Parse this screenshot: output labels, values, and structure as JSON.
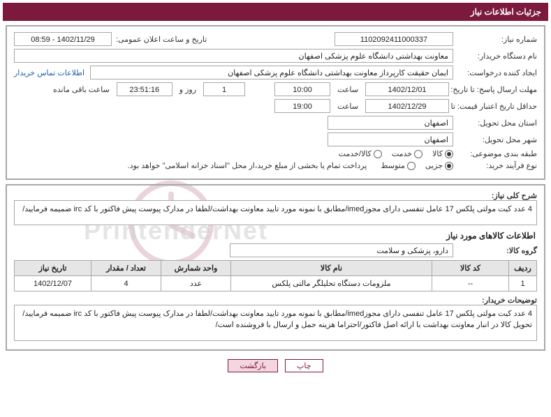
{
  "title": "جزئیات اطلاعات نیاز",
  "labels": {
    "need_no": "شماره نیاز:",
    "announce_dt": "تاریخ و ساعت اعلان عمومی:",
    "buyer_org": "نام دستگاه خریدار:",
    "requester": "ایجاد کننده درخواست:",
    "contact_link": "اطلاعات تماس خریدار",
    "reply_deadline": "مهلت ارسال پاسخ: تا تاریخ:",
    "hour": "ساعت",
    "day_and": "روز و",
    "remaining": "ساعت باقی مانده",
    "price_valid_min": "حداقل تاریخ اعتبار قیمت: تا تاریخ:",
    "delivery_province": "استان محل تحویل:",
    "delivery_city": "شهر محل تحویل:",
    "subject_class": "طبقه بندی موضوعی:",
    "buy_process": "نوع فرآیند خرید:",
    "payment_note": "پرداخت تمام یا بخشی از مبلغ خرید،از محل \"اسناد خزانه اسلامی\" خواهد بود.",
    "general_desc": "شرح کلی نیاز:",
    "items_header": "اطلاعات کالاهای مورد نیاز",
    "goods_group": "گروه کالا:",
    "buyer_notes": "توضیحات خریدار:",
    "print": "چاپ",
    "back": "بازگشت"
  },
  "fields": {
    "need_no": "1102092411000337",
    "announce_dt": "1402/11/29 - 08:59",
    "buyer_org": "معاونت بهداشتی دانشگاه علوم پزشکی اصفهان",
    "requester": "ایمان حقیقت کارپرداز معاونت بهداشتی دانشگاه علوم پزشکی اصفهان",
    "reply_date": "1402/12/01",
    "reply_time": "10:00",
    "remaining_days": "1",
    "remaining_time": "23:51:16",
    "price_valid_date": "1402/12/29",
    "price_valid_time": "19:00",
    "delivery_province": "اصفهان",
    "delivery_city": "اصفهان",
    "general_desc": "4 عدد کیت مولتی پلکس 17 عامل تنفسی دارای مجوزimed/مطابق با نمونه مورد تایید معاونت بهداشت/لطفا در مدارک پیوست پیش فاکتور با کد irc ضمیمه فرمایید/",
    "goods_group": "دارو، پزشکی و سلامت",
    "buyer_notes": "4 عدد کیت مولتی پلکس 17 عامل تنفسی دارای مجوزimed/مطابق با نمونه مورد تایید معاونت بهداشت/لطفا در مدارک پیوست پیش فاکتور با کد irc ضمیمه فرمایید/تحویل کالا در انبار معاونت بهداشت با ارائه اصل فاکتور/احتراما هزینه حمل و ارسال با فروشنده است/"
  },
  "radios": {
    "subject": {
      "goods": "کالا",
      "service": "خدمت",
      "goods_service": "کالا/خدمت"
    },
    "process": {
      "partial": "جزیی",
      "medium": "متوسط"
    }
  },
  "table": {
    "cols": {
      "row": "ردیف",
      "code": "کد کالا",
      "name": "نام کالا",
      "unit": "واحد شمارش",
      "qty": "تعداد / مقدار",
      "need_date": "تاریخ نیاز"
    },
    "rows": [
      {
        "row": "1",
        "code": "--",
        "name": "ملزومات دستگاه تحلیلگر مالتی پلکس",
        "unit": "عدد",
        "qty": "4",
        "need_date": "1402/12/07"
      }
    ]
  },
  "col_widths": {
    "row": "40px",
    "code": "110px",
    "name": "auto",
    "unit": "100px",
    "qty": "100px",
    "need_date": "110px"
  },
  "watermark_text": "PrintenderNet"
}
